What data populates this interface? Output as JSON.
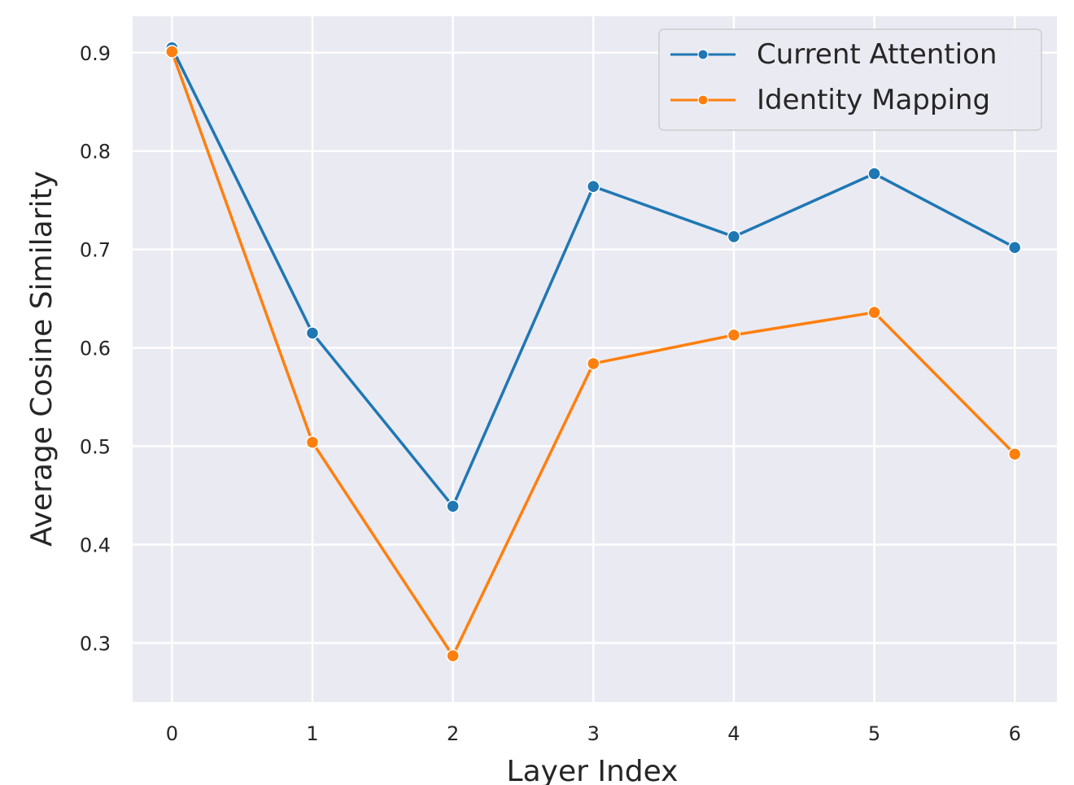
{
  "chart_data": {
    "type": "line",
    "title": "",
    "xlabel": "Layer Index",
    "ylabel": "Average Cosine Similarity",
    "x": [
      0,
      1,
      2,
      3,
      4,
      5,
      6
    ],
    "x_ticks": [
      "0",
      "1",
      "2",
      "3",
      "4",
      "5",
      "6"
    ],
    "y_ticks": [
      "0.3",
      "0.4",
      "0.5",
      "0.6",
      "0.7",
      "0.8",
      "0.9"
    ],
    "xlim": [
      -0.28,
      6.3
    ],
    "ylim": [
      0.24,
      0.937
    ],
    "grid": true,
    "legend_position": "top-right",
    "background": "#eaeaf2",
    "series": [
      {
        "name": "Current Attention",
        "color": "#1f77b4",
        "values": [
          0.905,
          0.615,
          0.439,
          0.764,
          0.713,
          0.777,
          0.702
        ]
      },
      {
        "name": "Identity Mapping",
        "color": "#ff7f0e",
        "values": [
          0.901,
          0.504,
          0.287,
          0.584,
          0.613,
          0.636,
          0.492
        ]
      }
    ]
  }
}
